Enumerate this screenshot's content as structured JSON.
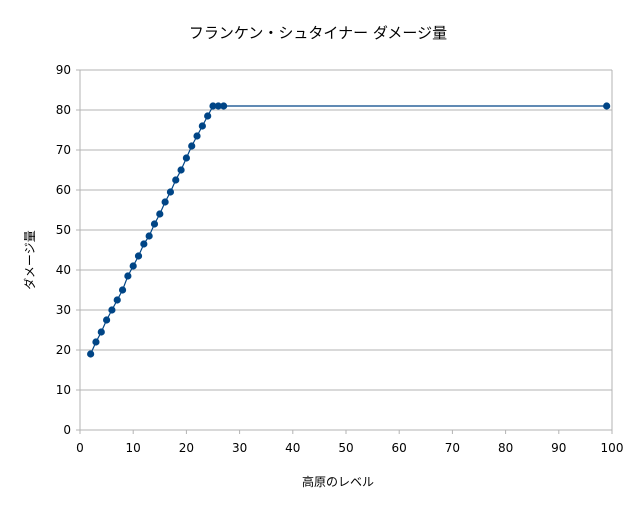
{
  "chart_data": {
    "type": "line",
    "title": "フランケン・シュタイナー ダメージ量",
    "xlabel": "高原のレベル",
    "ylabel": "ダメージ量",
    "xlim": [
      0,
      100
    ],
    "ylim": [
      0,
      90
    ],
    "xticks": [
      0,
      10,
      20,
      30,
      40,
      50,
      60,
      70,
      80,
      90,
      100
    ],
    "yticks": [
      0,
      10,
      20,
      30,
      40,
      50,
      60,
      70,
      80,
      90
    ],
    "grid": true,
    "legend": "none",
    "color": "#004586",
    "series": [
      {
        "x": [
          2,
          3,
          4,
          5,
          6,
          7,
          8,
          9,
          10,
          11,
          12,
          13,
          14,
          15,
          16,
          17,
          18,
          19,
          20,
          21,
          22,
          23,
          24,
          25,
          26,
          27,
          99
        ],
        "y": [
          19,
          22,
          24.5,
          27.5,
          30,
          32.5,
          35,
          38.5,
          41,
          43.5,
          46.5,
          48.5,
          51.5,
          54,
          57,
          59.5,
          62.5,
          65,
          68,
          71,
          73.5,
          76,
          78.5,
          81,
          81,
          81,
          81
        ]
      }
    ]
  }
}
